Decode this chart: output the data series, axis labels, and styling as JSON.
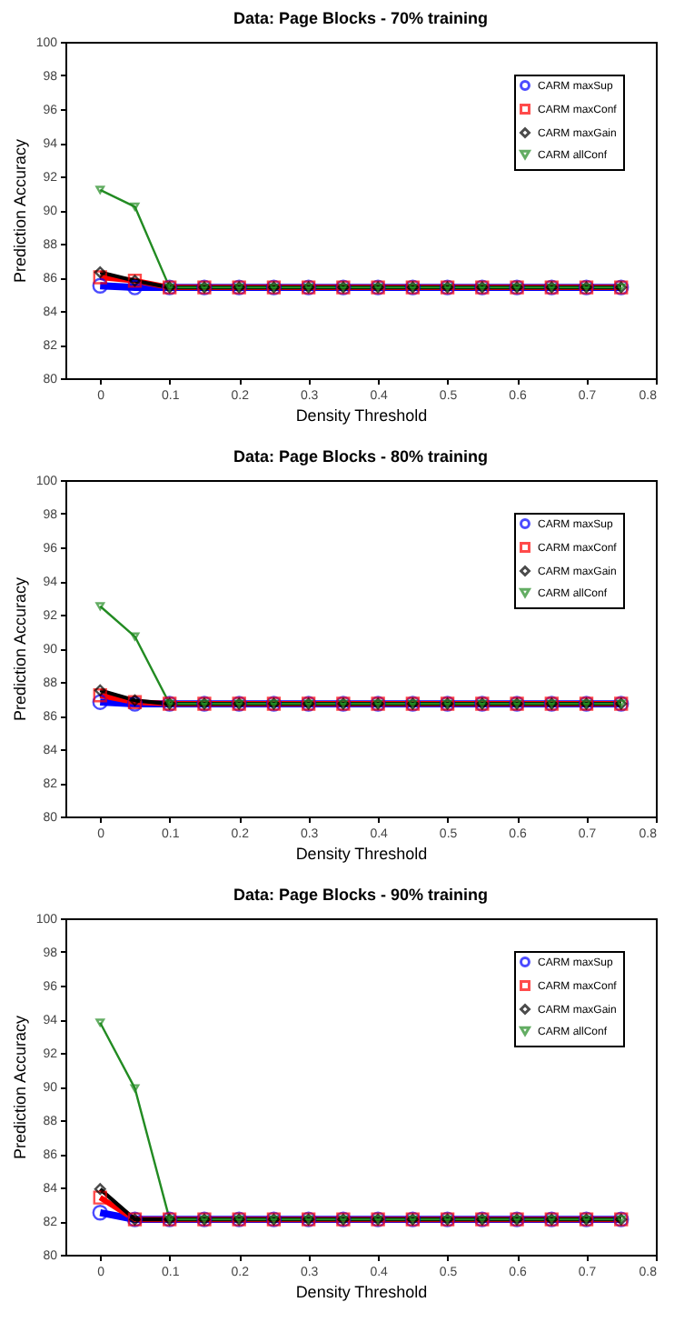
{
  "chart_data": [
    {
      "type": "line",
      "title": "Data: Page Blocks - 70% training",
      "xlabel": "Density Threshold",
      "ylabel": "Prediction Accuracy",
      "x": [
        0,
        0.05,
        0.1,
        0.15,
        0.2,
        0.25,
        0.3,
        0.35,
        0.4,
        0.45,
        0.5,
        0.55,
        0.6,
        0.65,
        0.7,
        0.75
      ],
      "xlim": [
        -0.05,
        0.8
      ],
      "xticks": [
        0,
        0.1,
        0.2,
        0.3,
        0.4,
        0.5,
        0.6,
        0.7,
        0.8
      ],
      "ylim": [
        80,
        100
      ],
      "yticks": [
        80,
        82,
        84,
        86,
        88,
        90,
        92,
        94,
        96,
        98,
        100
      ],
      "grid": false,
      "legend": "top right",
      "series": [
        {
          "name": "CARM maxSup",
          "color": "#0000ff",
          "marker": "circle",
          "values": [
            85.5,
            85.4,
            85.4,
            85.4,
            85.4,
            85.4,
            85.4,
            85.4,
            85.4,
            85.4,
            85.4,
            85.4,
            85.4,
            85.4,
            85.4,
            85.4
          ]
        },
        {
          "name": "CARM maxConf",
          "color": "#ff0000",
          "marker": "square",
          "values": [
            86.0,
            85.8,
            85.4,
            85.4,
            85.4,
            85.4,
            85.4,
            85.4,
            85.4,
            85.4,
            85.4,
            85.4,
            85.4,
            85.4,
            85.4,
            85.4
          ]
        },
        {
          "name": "CARM maxGain",
          "color": "#000000",
          "marker": "diamond",
          "values": [
            86.3,
            85.8,
            85.4,
            85.4,
            85.4,
            85.4,
            85.4,
            85.4,
            85.4,
            85.4,
            85.4,
            85.4,
            85.4,
            85.4,
            85.4,
            85.4
          ]
        },
        {
          "name": "CARM allConf",
          "color": "#228b22",
          "marker": "triangle",
          "values": [
            91.2,
            90.2,
            85.4,
            85.4,
            85.4,
            85.4,
            85.4,
            85.4,
            85.4,
            85.4,
            85.4,
            85.4,
            85.4,
            85.4,
            85.4,
            85.4
          ]
        }
      ]
    },
    {
      "type": "line",
      "title": "Data: Page Blocks - 80% training",
      "xlabel": "Density Threshold",
      "ylabel": "Prediction Accuracy",
      "x": [
        0,
        0.05,
        0.1,
        0.15,
        0.2,
        0.25,
        0.3,
        0.35,
        0.4,
        0.45,
        0.5,
        0.55,
        0.6,
        0.65,
        0.7,
        0.75
      ],
      "xlim": [
        -0.05,
        0.8
      ],
      "xticks": [
        0,
        0.1,
        0.2,
        0.3,
        0.4,
        0.5,
        0.6,
        0.7,
        0.8
      ],
      "ylim": [
        80,
        100
      ],
      "yticks": [
        80,
        82,
        84,
        86,
        88,
        90,
        92,
        94,
        96,
        98,
        100
      ],
      "grid": false,
      "legend": "top right",
      "series": [
        {
          "name": "CARM maxSup",
          "color": "#0000ff",
          "marker": "circle",
          "values": [
            86.8,
            86.7,
            86.7,
            86.7,
            86.7,
            86.7,
            86.7,
            86.7,
            86.7,
            86.7,
            86.7,
            86.7,
            86.7,
            86.7,
            86.7,
            86.7
          ]
        },
        {
          "name": "CARM maxConf",
          "color": "#ff0000",
          "marker": "square",
          "values": [
            87.2,
            86.8,
            86.7,
            86.7,
            86.7,
            86.7,
            86.7,
            86.7,
            86.7,
            86.7,
            86.7,
            86.7,
            86.7,
            86.7,
            86.7,
            86.7
          ]
        },
        {
          "name": "CARM maxGain",
          "color": "#000000",
          "marker": "diamond",
          "values": [
            87.5,
            86.9,
            86.7,
            86.7,
            86.7,
            86.7,
            86.7,
            86.7,
            86.7,
            86.7,
            86.7,
            86.7,
            86.7,
            86.7,
            86.7,
            86.7
          ]
        },
        {
          "name": "CARM allConf",
          "color": "#228b22",
          "marker": "triangle",
          "values": [
            92.5,
            90.7,
            86.7,
            86.7,
            86.7,
            86.7,
            86.7,
            86.7,
            86.7,
            86.7,
            86.7,
            86.7,
            86.7,
            86.7,
            86.7,
            86.7
          ]
        }
      ]
    },
    {
      "type": "line",
      "title": "Data: Page Blocks - 90% training",
      "xlabel": "Density Threshold",
      "ylabel": "Prediction Accuracy",
      "x": [
        0,
        0.05,
        0.1,
        0.15,
        0.2,
        0.25,
        0.3,
        0.35,
        0.4,
        0.45,
        0.5,
        0.55,
        0.6,
        0.65,
        0.7,
        0.75
      ],
      "xlim": [
        -0.05,
        0.8
      ],
      "xticks": [
        0,
        0.1,
        0.2,
        0.3,
        0.4,
        0.5,
        0.6,
        0.7,
        0.8
      ],
      "ylim": [
        80,
        100
      ],
      "yticks": [
        80,
        82,
        84,
        86,
        88,
        90,
        92,
        94,
        96,
        98,
        100
      ],
      "grid": false,
      "legend": "top right",
      "series": [
        {
          "name": "CARM maxSup",
          "color": "#0000ff",
          "marker": "circle",
          "values": [
            82.5,
            82.1,
            82.1,
            82.1,
            82.1,
            82.1,
            82.1,
            82.1,
            82.1,
            82.1,
            82.1,
            82.1,
            82.1,
            82.1,
            82.1,
            82.1
          ]
        },
        {
          "name": "CARM maxConf",
          "color": "#ff0000",
          "marker": "square",
          "values": [
            83.4,
            82.1,
            82.1,
            82.1,
            82.1,
            82.1,
            82.1,
            82.1,
            82.1,
            82.1,
            82.1,
            82.1,
            82.1,
            82.1,
            82.1,
            82.1
          ]
        },
        {
          "name": "CARM maxGain",
          "color": "#000000",
          "marker": "diamond",
          "values": [
            83.9,
            82.1,
            82.1,
            82.1,
            82.1,
            82.1,
            82.1,
            82.1,
            82.1,
            82.1,
            82.1,
            82.1,
            82.1,
            82.1,
            82.1,
            82.1
          ]
        },
        {
          "name": "CARM allConf",
          "color": "#228b22",
          "marker": "triangle",
          "values": [
            93.8,
            89.9,
            82.1,
            82.1,
            82.1,
            82.1,
            82.1,
            82.1,
            82.1,
            82.1,
            82.1,
            82.1,
            82.1,
            82.1,
            82.1,
            82.1
          ]
        }
      ]
    }
  ]
}
